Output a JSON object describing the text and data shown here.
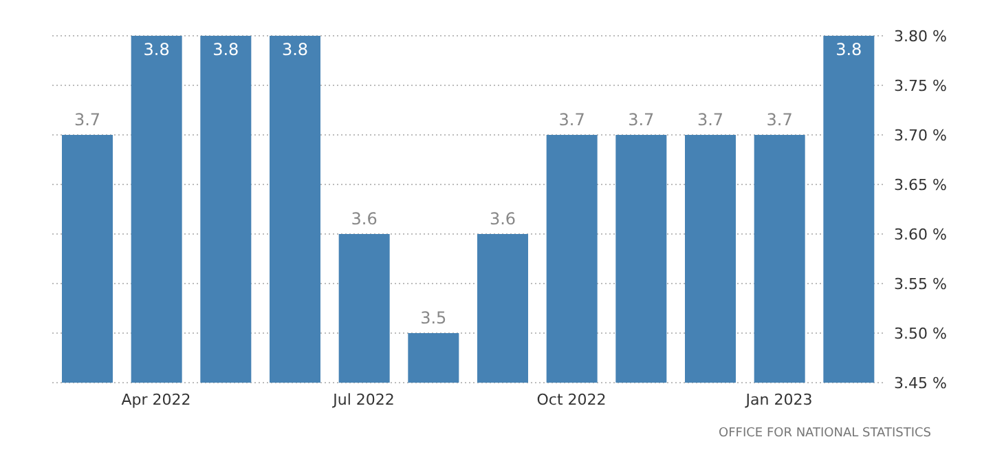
{
  "chart_data": {
    "type": "bar",
    "categories": [
      null,
      "Apr 2022",
      null,
      null,
      "Jul 2022",
      null,
      null,
      "Oct 2022",
      null,
      null,
      "Jan 2023",
      null
    ],
    "values": [
      3.7,
      3.8,
      3.8,
      3.8,
      3.6,
      3.5,
      3.6,
      3.7,
      3.7,
      3.7,
      3.7,
      3.8
    ],
    "color": "#4682b4",
    "ylim": [
      3.45,
      3.8
    ],
    "yticks": [
      {
        "value": 3.45,
        "label": "3.45 %"
      },
      {
        "value": 3.5,
        "label": "3.50 %"
      },
      {
        "value": 3.55,
        "label": "3.55 %"
      },
      {
        "value": 3.6,
        "label": "3.60 %"
      },
      {
        "value": 3.65,
        "label": "3.65 %"
      },
      {
        "value": 3.7,
        "label": "3.70 %"
      },
      {
        "value": 3.75,
        "label": "3.75 %"
      },
      {
        "value": 3.8,
        "label": "3.80 %"
      }
    ],
    "grid": "y",
    "data_labels": true,
    "annotations": [
      "OFFICE FOR NATIONAL STATISTICS"
    ]
  }
}
